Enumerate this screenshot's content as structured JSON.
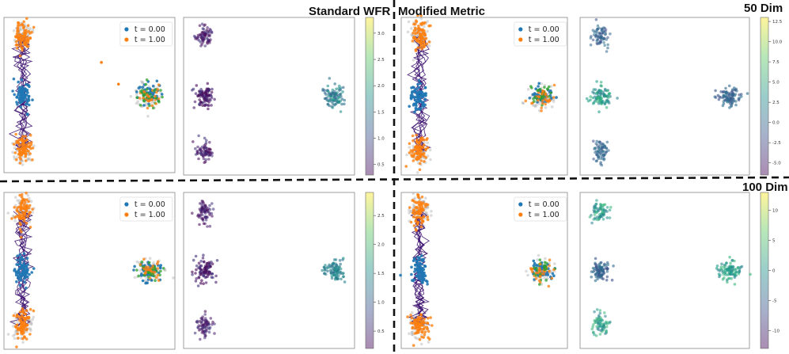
{
  "headers": {
    "standard": "Standard WFR",
    "modified": "Modified Metric",
    "dim50": "50 Dim",
    "dim100": "100 Dim"
  },
  "legend": {
    "t0": "t = 0.00",
    "t1": "t = 1.00",
    "t0_color": "#1f77b4",
    "t1_color": "#ff7f0e"
  },
  "colors": {
    "gray_points": "#9a9a9a",
    "traj": "#3b0f6f",
    "panel_border": "#888888",
    "divider": "#111111"
  },
  "chart_data": [
    {
      "id": "std50_traj",
      "type": "scatter",
      "group": "Standard WFR / 50 Dim",
      "clusters": [
        "upper",
        "middle",
        "lower",
        "right"
      ],
      "legend": [
        "t = 0.00",
        "t = 1.00"
      ]
    },
    {
      "id": "std50_color",
      "type": "scatter",
      "group": "Standard WFR / 50 Dim",
      "colorbar": {
        "ticks": [
          "0.5",
          "1.0",
          "1.5",
          "2.0",
          "2.5",
          "3.0"
        ],
        "range": [
          0.3,
          3.3
        ]
      }
    },
    {
      "id": "mod50_traj",
      "type": "scatter",
      "group": "Modified Metric / 50 Dim",
      "clusters": [
        "upper",
        "middle",
        "lower",
        "right"
      ],
      "legend": [
        "t = 0.00",
        "t = 1.00"
      ]
    },
    {
      "id": "mod50_color",
      "type": "scatter",
      "group": "Modified Metric / 50 Dim",
      "colorbar": {
        "ticks": [
          "-5.0",
          "-2.5",
          "0.0",
          "2.5",
          "5.0",
          "7.5",
          "10.0",
          "12.5"
        ],
        "range": [
          -6.5,
          13.0
        ]
      }
    },
    {
      "id": "std100_traj",
      "type": "scatter",
      "group": "Standard WFR / 100 Dim",
      "clusters": [
        "upper",
        "middle",
        "lower",
        "right"
      ],
      "legend": [
        "t = 0.00",
        "t = 1.00"
      ]
    },
    {
      "id": "std100_color",
      "type": "scatter",
      "group": "Standard WFR / 100 Dim",
      "colorbar": {
        "ticks": [
          "0.5",
          "1.0",
          "1.5",
          "2.0",
          "2.5"
        ],
        "range": [
          0.2,
          2.9
        ]
      }
    },
    {
      "id": "mod100_traj",
      "type": "scatter",
      "group": "Modified Metric / 100 Dim",
      "clusters": [
        "upper",
        "middle",
        "lower",
        "right"
      ],
      "legend": [
        "t = 0.00",
        "t = 1.00"
      ]
    },
    {
      "id": "mod100_color",
      "type": "scatter",
      "group": "Modified Metric / 100 Dim",
      "colorbar": {
        "ticks": [
          "-10",
          "-5",
          "0",
          "5",
          "10"
        ],
        "range": [
          -13,
          13
        ]
      }
    }
  ]
}
